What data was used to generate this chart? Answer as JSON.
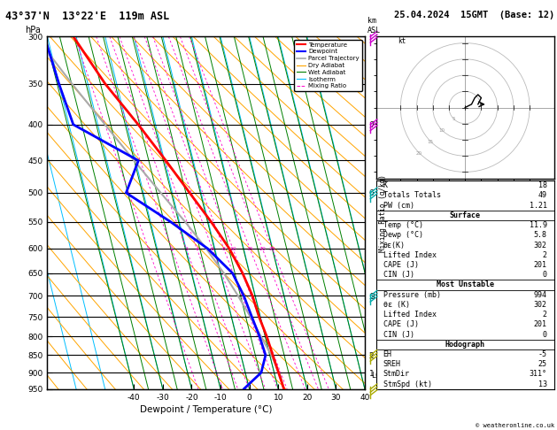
{
  "title_left": "43°37'N  13°22'E  119m ASL",
  "title_right": "25.04.2024  15GMT  (Base: 12)",
  "xlabel": "Dewpoint / Temperature (°C)",
  "pressure_levels": [
    300,
    350,
    400,
    450,
    500,
    550,
    600,
    650,
    700,
    750,
    800,
    850,
    900,
    950
  ],
  "isotherm_color": "#00bfff",
  "dry_adiabat_color": "#ffa500",
  "wet_adiabat_color": "#008000",
  "mixing_ratio_color": "#ff00cc",
  "temp_line_color": "#ff0000",
  "dewp_line_color": "#0000ff",
  "parcel_color": "#aaaaaa",
  "mixing_ratios": [
    1,
    2,
    3,
    4,
    6,
    8,
    10,
    15,
    20,
    25
  ],
  "lcl_pressure": 910,
  "temp_profile": [
    {
      "p": 994,
      "T": 11.9
    },
    {
      "p": 950,
      "T": 12.0
    },
    {
      "p": 900,
      "T": 11.5
    },
    {
      "p": 850,
      "T": 11.0
    },
    {
      "p": 800,
      "T": 10.5
    },
    {
      "p": 750,
      "T": 9.5
    },
    {
      "p": 700,
      "T": 9.0
    },
    {
      "p": 650,
      "T": 7.5
    },
    {
      "p": 600,
      "T": 5.0
    },
    {
      "p": 550,
      "T": 1.0
    },
    {
      "p": 500,
      "T": -4.0
    },
    {
      "p": 450,
      "T": -9.5
    },
    {
      "p": 400,
      "T": -16.0
    },
    {
      "p": 350,
      "T": -24.0
    },
    {
      "p": 300,
      "T": -31.0
    }
  ],
  "dewp_profile": [
    {
      "p": 994,
      "T": 5.8
    },
    {
      "p": 950,
      "T": -2.0
    },
    {
      "p": 900,
      "T": 5.5
    },
    {
      "p": 850,
      "T": 8.5
    },
    {
      "p": 800,
      "T": 8.0
    },
    {
      "p": 750,
      "T": 7.0
    },
    {
      "p": 700,
      "T": 6.0
    },
    {
      "p": 650,
      "T": 4.0
    },
    {
      "p": 600,
      "T": -2.5
    },
    {
      "p": 550,
      "T": -13.0
    },
    {
      "p": 500,
      "T": -26.0
    },
    {
      "p": 450,
      "T": -19.0
    },
    {
      "p": 400,
      "T": -38.5
    },
    {
      "p": 350,
      "T": -40.0
    },
    {
      "p": 300,
      "T": -41.0
    }
  ],
  "parcel_profile": [
    {
      "p": 994,
      "T": 11.9
    },
    {
      "p": 910,
      "T": 11.9
    },
    {
      "p": 850,
      "T": 10.5
    },
    {
      "p": 800,
      "T": 8.5
    },
    {
      "p": 750,
      "T": 6.5
    },
    {
      "p": 700,
      "T": 4.0
    },
    {
      "p": 650,
      "T": 1.0
    },
    {
      "p": 600,
      "T": -3.0
    },
    {
      "p": 550,
      "T": -8.0
    },
    {
      "p": 500,
      "T": -14.0
    },
    {
      "p": 450,
      "T": -20.5
    },
    {
      "p": 400,
      "T": -27.5
    },
    {
      "p": 350,
      "T": -35.5
    },
    {
      "p": 300,
      "T": -44.0
    }
  ],
  "km_ticks_p": [
    400,
    500,
    700,
    850,
    900
  ],
  "km_ticks_lbl": [
    "7",
    "6",
    "3",
    "2",
    "1"
  ],
  "stats_rows": [
    {
      "label": "K",
      "value": "18",
      "section": false
    },
    {
      "label": "Totals Totals",
      "value": "49",
      "section": false
    },
    {
      "label": "PW (cm)",
      "value": "1.21",
      "section": false
    },
    {
      "label": "Surface",
      "value": "",
      "section": true
    },
    {
      "label": "Temp (°C)",
      "value": "11.9",
      "section": false
    },
    {
      "label": "Dewp (°C)",
      "value": "5.8",
      "section": false
    },
    {
      "label": "θε(K)",
      "value": "302",
      "section": false
    },
    {
      "label": "Lifted Index",
      "value": "2",
      "section": false
    },
    {
      "label": "CAPE (J)",
      "value": "201",
      "section": false
    },
    {
      "label": "CIN (J)",
      "value": "0",
      "section": false
    },
    {
      "label": "Most Unstable",
      "value": "",
      "section": true
    },
    {
      "label": "Pressure (mb)",
      "value": "994",
      "section": false
    },
    {
      "label": "θε (K)",
      "value": "302",
      "section": false
    },
    {
      "label": "Lifted Index",
      "value": "2",
      "section": false
    },
    {
      "label": "CAPE (J)",
      "value": "201",
      "section": false
    },
    {
      "label": "CIN (J)",
      "value": "0",
      "section": false
    },
    {
      "label": "Hodograph",
      "value": "",
      "section": true
    },
    {
      "label": "EH",
      "value": "-5",
      "section": false
    },
    {
      "label": "SREH",
      "value": "25",
      "section": false
    },
    {
      "label": "StmDir",
      "value": "311°",
      "section": false
    },
    {
      "label": "StmSpd (kt)",
      "value": "13",
      "section": false
    }
  ],
  "wind_barb_pressures": [
    300,
    400,
    500,
    700,
    850,
    950
  ],
  "wind_barb_colors": [
    "#cc00cc",
    "#cc00cc",
    "#00aaaa",
    "#00aaaa",
    "#aaaa00",
    "#aaaa00"
  ],
  "hodograph_u": [
    0,
    2,
    3,
    4,
    5,
    4
  ],
  "hodograph_v": [
    0,
    1,
    3,
    4,
    3,
    1
  ],
  "storm_u": 7,
  "storm_v": 1
}
